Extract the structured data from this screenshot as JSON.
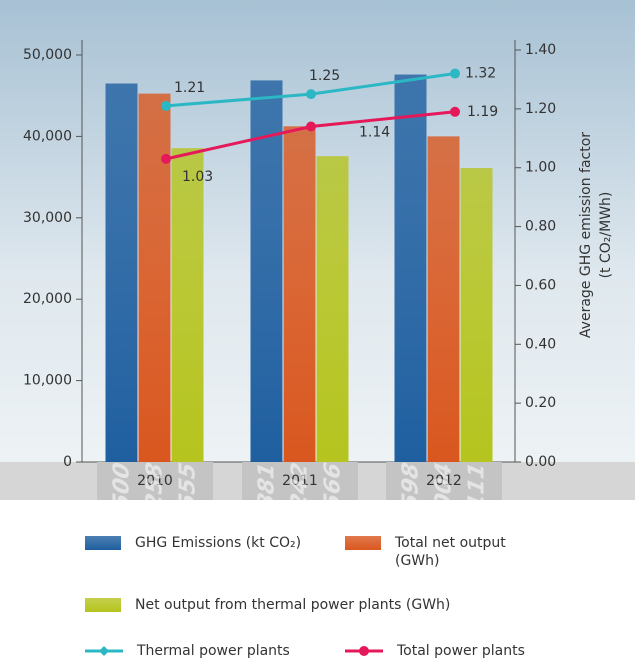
{
  "chart_data": {
    "type": "bar",
    "categories": [
      "2010",
      "2011",
      "2012"
    ],
    "series": [
      {
        "name": "GHG Emissions (kt CO₂)",
        "color": "#1f5fa0",
        "values": [
          46500,
          46881,
          47598
        ],
        "value_labels": [
          "46,500",
          "46,881",
          "47,598"
        ]
      },
      {
        "name": "Total net output (GWh)",
        "color": "#d9571f",
        "values": [
          45258,
          41242,
          40004
        ],
        "value_labels": [
          "45,258",
          "41,242",
          "40,004"
        ]
      },
      {
        "name": "Net output from thermal power plants (GWh)",
        "color": "#b5c41e",
        "values": [
          38555,
          37566,
          36111
        ],
        "value_labels": [
          "38,555",
          "37,566",
          "36,111"
        ]
      },
      {
        "name": "Thermal power plants",
        "type": "line",
        "axis": "y2",
        "color": "#2bb8c4",
        "values": [
          1.21,
          1.25,
          1.32
        ]
      },
      {
        "name": "Total power plants",
        "type": "line",
        "axis": "y2",
        "color": "#e5195a",
        "values": [
          1.03,
          1.14,
          1.19
        ]
      }
    ],
    "ylim": [
      0,
      50000
    ],
    "yticks": [
      0,
      {
        "value": 10000,
        "label": "10,000"
      },
      {
        "value": 20000,
        "label": "20,000"
      },
      {
        "value": 30000,
        "label": "30,000"
      },
      {
        "value": 40000,
        "label": "40,000"
      },
      {
        "value": 50000,
        "label": "50,000"
      }
    ],
    "y2lim": [
      0,
      1.4
    ],
    "y2ticks": [
      {
        "value": 0,
        "label": "0.00"
      },
      {
        "value": 0.2,
        "label": "0.20"
      },
      {
        "value": 0.4,
        "label": "0.40"
      },
      {
        "value": 0.6,
        "label": "0.60"
      },
      {
        "value": 0.8,
        "label": "0.80"
      },
      {
        "value": 1.0,
        "label": "1.00"
      },
      {
        "value": 1.2,
        "label": "1.20"
      },
      {
        "value": 1.4,
        "label": "1.40"
      }
    ],
    "y2label": [
      "Average GHG emission factor",
      "(t CO₂/MWh)"
    ]
  }
}
